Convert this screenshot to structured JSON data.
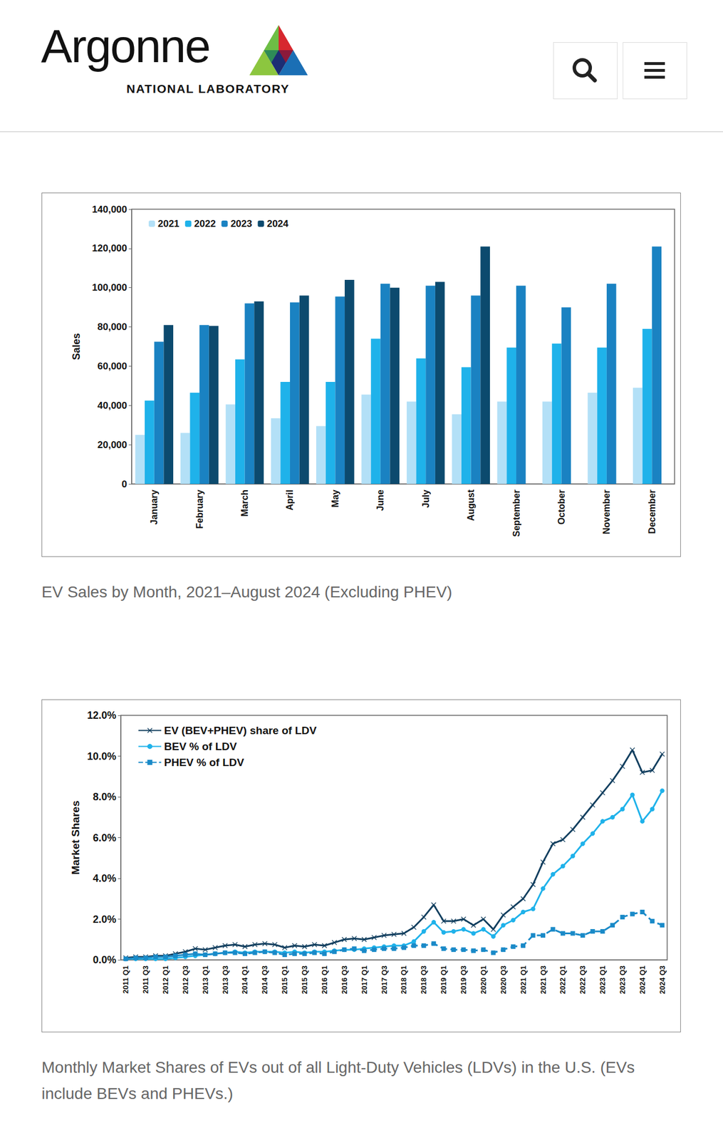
{
  "header": {
    "logo": "Argonne",
    "logo_subtitle": "NATIONAL LABORATORY"
  },
  "chart_data": [
    {
      "type": "bar",
      "caption": "EV Sales by Month, 2021–August 2024 (Excluding PHEV)",
      "ylabel": "Sales",
      "categories": [
        "January",
        "February",
        "March",
        "April",
        "May",
        "June",
        "July",
        "August",
        "September",
        "October",
        "November",
        "December"
      ],
      "series": [
        {
          "name": "2021",
          "color": "#b3e0f7",
          "values": [
            25000,
            26000,
            40500,
            33500,
            29500,
            45500,
            42000,
            35500,
            42000,
            42000,
            46500,
            49000
          ]
        },
        {
          "name": "2022",
          "color": "#1fb2ea",
          "values": [
            42500,
            46500,
            63500,
            52000,
            52000,
            74000,
            64000,
            59500,
            69500,
            71500,
            69500,
            79000
          ]
        },
        {
          "name": "2023",
          "color": "#1a82c2",
          "values": [
            72500,
            81000,
            92000,
            92500,
            95500,
            102000,
            101000,
            96000,
            101000,
            90000,
            102000,
            121000
          ]
        },
        {
          "name": "2024",
          "color": "#0c4a6e",
          "values": [
            81000,
            80500,
            93000,
            96000,
            104000,
            100000,
            103000,
            121000,
            null,
            null,
            null,
            null
          ]
        }
      ],
      "ylim": [
        0,
        140000
      ],
      "yticks": [
        0,
        {
          "value": 20000,
          "label": "20,000"
        },
        {
          "value": 40000,
          "label": "40,000"
        },
        {
          "value": 60000,
          "label": "60,000"
        },
        {
          "value": 80000,
          "label": "80,000"
        },
        {
          "value": 100000,
          "label": "100,000"
        },
        {
          "value": 120000,
          "label": "120,000"
        },
        {
          "value": 140000,
          "label": "140,000"
        }
      ],
      "grid": false,
      "legend": "upper left"
    },
    {
      "type": "line",
      "caption": "Monthly Market Shares of EVs out of all Light-Duty Vehicles (LDVs) in the U.S. (EVs include BEVs and PHEVs.)",
      "ylabel": "Market Shares",
      "categories": [
        "2011 Q1",
        null,
        "2011 Q3",
        null,
        "2012 Q1",
        null,
        "2012 Q3",
        null,
        "2013 Q1",
        null,
        "2013 Q3",
        null,
        "2014 Q1",
        null,
        "2014 Q3",
        null,
        "2015 Q1",
        null,
        "2015 Q3",
        null,
        "2016 Q1",
        null,
        "2016 Q3",
        null,
        "2017 Q1",
        null,
        "2017 Q3",
        null,
        "2018 Q1",
        null,
        "2018 Q3",
        null,
        "2019 Q1",
        null,
        "2019 Q3",
        null,
        "2020 Q1",
        null,
        "2020 Q3",
        null,
        "2021 Q1",
        null,
        "2021 Q3",
        null,
        "2022 Q1",
        null,
        "2022 Q3",
        null,
        "2023 Q1",
        null,
        "2023 Q3",
        null,
        "2024 Q1",
        null,
        "2024 Q3"
      ],
      "series": [
        {
          "name": "EV (BEV+PHEV) share of LDV",
          "color": "#123f5f",
          "marker": "x",
          "line_style": "solid",
          "values": [
            0.1,
            0.15,
            0.15,
            0.2,
            0.2,
            0.3,
            0.4,
            0.55,
            0.5,
            0.6,
            0.7,
            0.75,
            0.65,
            0.75,
            0.8,
            0.75,
            0.6,
            0.7,
            0.65,
            0.75,
            0.7,
            0.85,
            1.0,
            1.05,
            1.0,
            1.1,
            1.2,
            1.25,
            1.3,
            1.6,
            2.1,
            2.7,
            1.9,
            1.9,
            2.0,
            1.7,
            2.0,
            1.5,
            2.2,
            2.6,
            3.0,
            3.7,
            4.8,
            5.7,
            5.9,
            6.4,
            7.0,
            7.6,
            8.2,
            8.8,
            9.5,
            10.3,
            9.2,
            9.3,
            10.1
          ]
        },
        {
          "name": "BEV % of LDV",
          "color": "#1fb2ea",
          "marker": "circle",
          "line_style": "solid",
          "values": [
            0.05,
            0.05,
            0.05,
            0.05,
            0.05,
            0.1,
            0.15,
            0.2,
            0.25,
            0.3,
            0.35,
            0.4,
            0.35,
            0.4,
            0.4,
            0.4,
            0.35,
            0.4,
            0.35,
            0.4,
            0.4,
            0.45,
            0.5,
            0.5,
            0.55,
            0.6,
            0.65,
            0.7,
            0.7,
            0.9,
            1.4,
            1.85,
            1.35,
            1.4,
            1.5,
            1.3,
            1.5,
            1.15,
            1.7,
            1.95,
            2.35,
            2.5,
            3.5,
            4.2,
            4.6,
            5.1,
            5.7,
            6.2,
            6.8,
            7.0,
            7.4,
            8.1,
            6.8,
            7.4,
            8.3
          ]
        },
        {
          "name": "PHEV % of LDV",
          "color": "#1a8ac8",
          "marker": "square",
          "line_style": "dashed",
          "values": [
            0.05,
            0.1,
            0.1,
            0.15,
            0.15,
            0.2,
            0.25,
            0.3,
            0.25,
            0.3,
            0.35,
            0.35,
            0.3,
            0.35,
            0.4,
            0.35,
            0.25,
            0.3,
            0.3,
            0.35,
            0.3,
            0.4,
            0.5,
            0.55,
            0.45,
            0.5,
            0.55,
            0.55,
            0.6,
            0.7,
            0.7,
            0.8,
            0.55,
            0.5,
            0.5,
            0.45,
            0.5,
            0.35,
            0.5,
            0.65,
            0.7,
            1.2,
            1.2,
            1.5,
            1.3,
            1.3,
            1.2,
            1.4,
            1.4,
            1.7,
            2.1,
            2.25,
            2.35,
            1.9,
            1.7
          ]
        }
      ],
      "ylim": [
        0,
        12
      ],
      "yticks": [
        {
          "value": 0,
          "label": "0.0%"
        },
        {
          "value": 2,
          "label": "2.0%"
        },
        {
          "value": 4,
          "label": "4.0%"
        },
        {
          "value": 6,
          "label": "6.0%"
        },
        {
          "value": 8,
          "label": "8.0%"
        },
        {
          "value": 10,
          "label": "10.0%"
        },
        {
          "value": 12,
          "label": "12.0%"
        }
      ],
      "grid": false,
      "legend": "upper left"
    }
  ]
}
